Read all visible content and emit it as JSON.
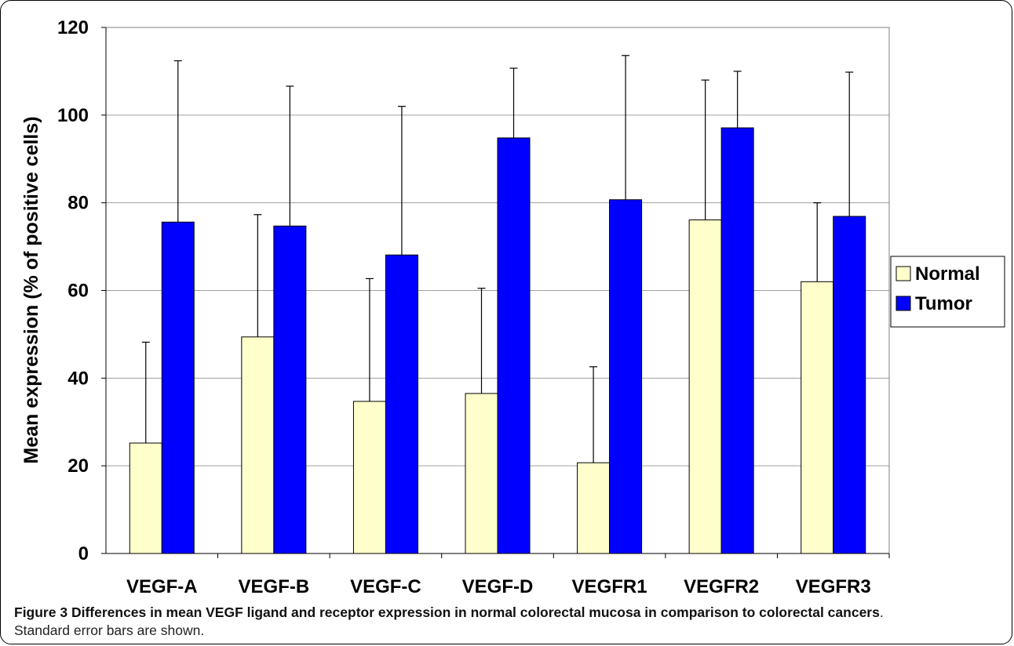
{
  "chart_data": {
    "type": "bar",
    "title": "",
    "xlabel": "",
    "ylabel": "Mean expression (% of positive cells)",
    "ylim": [
      0,
      120
    ],
    "yticks": [
      0,
      20,
      40,
      60,
      80,
      100,
      120
    ],
    "grid": true,
    "legend_position": "right",
    "categories": [
      "VEGF-A",
      "VEGF-B",
      "VEGF-C",
      "VEGF-D",
      "VEGFR1",
      "VEGFR2",
      "VEGFR3"
    ],
    "series": [
      {
        "name": "Normal",
        "color": "#FFFFCC",
        "values": [
          25.2,
          49.4,
          34.7,
          36.5,
          20.7,
          76.1,
          62.0
        ],
        "error_upper": [
          48.2,
          77.3,
          62.7,
          60.5,
          42.6,
          108.0,
          80.0
        ]
      },
      {
        "name": "Tumor",
        "color": "#0000FF",
        "values": [
          75.6,
          74.7,
          68.1,
          94.8,
          80.7,
          97.1,
          76.9
        ],
        "error_upper": [
          112.4,
          106.6,
          102.0,
          110.7,
          113.6,
          110.0,
          109.8
        ]
      }
    ]
  },
  "caption": {
    "label": "Figure 3",
    "title": "Differences in mean VEGF ligand and receptor expression in normal colorectal mucosa in comparison to colorectal cancers",
    "text": "Standard error bars are shown."
  }
}
